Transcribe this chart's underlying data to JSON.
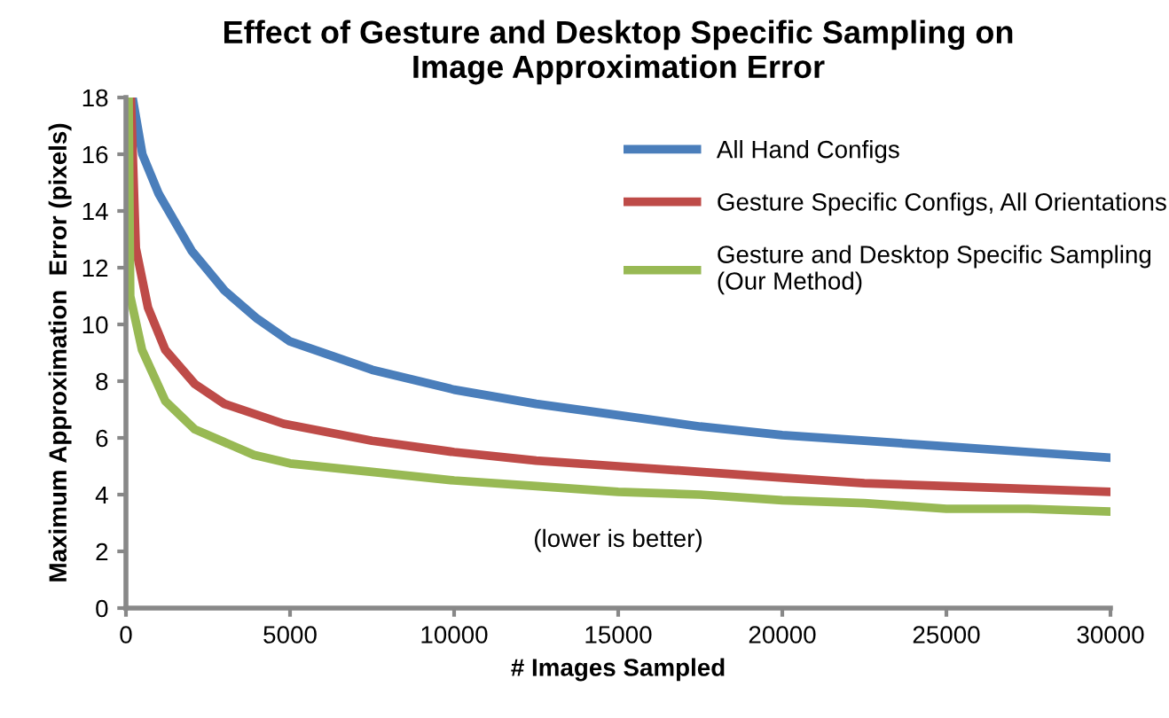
{
  "chart_data": {
    "type": "line",
    "title": "Effect of Gesture and Desktop Specific Sampling on\nImage Approximation Error",
    "xlabel": "# Images Sampled",
    "ylabel": "Maximum Approximation  Error (pixels)",
    "annotations": [
      "(lower is better)"
    ],
    "xlim": [
      0,
      30000
    ],
    "ylim": [
      0,
      18
    ],
    "xticks": [
      0,
      5000,
      10000,
      15000,
      20000,
      25000,
      30000
    ],
    "yticks": [
      0,
      2,
      4,
      6,
      8,
      10,
      12,
      14,
      16,
      18
    ],
    "grid": false,
    "legend": "top right",
    "marker": "none",
    "line_style": "solid",
    "series": [
      {
        "name": "All Hand Configs",
        "color": "#4a7ebb",
        "x": [
          200,
          500,
          1000,
          2000,
          3000,
          4000,
          5000,
          7500,
          10000,
          12500,
          15000,
          17500,
          20000,
          22500,
          25000,
          27500,
          30000
        ],
        "values": [
          18,
          16,
          14.6,
          12.6,
          11.2,
          10.2,
          9.4,
          8.4,
          7.7,
          7.2,
          6.8,
          6.4,
          6.1,
          5.9,
          5.7,
          5.5,
          5.3
        ]
      },
      {
        "name": "Gesture Specific Configs, All Orientations",
        "color": "#be4b48",
        "x": [
          150,
          300,
          670,
          1200,
          2100,
          3000,
          4800,
          7500,
          10000,
          12500,
          15000,
          17500,
          20000,
          22500,
          25000,
          27500,
          30000
        ],
        "values": [
          18,
          12.7,
          10.6,
          9.1,
          7.9,
          7.2,
          6.5,
          5.9,
          5.5,
          5.2,
          5.0,
          4.8,
          4.6,
          4.4,
          4.3,
          4.2,
          4.1
        ]
      },
      {
        "name": "Gesture and Desktop Specific Sampling\n(Our Method)",
        "color": "#98b954",
        "x": [
          80,
          130,
          490,
          1200,
          2100,
          3900,
          5000,
          7500,
          10000,
          12500,
          15000,
          17500,
          20000,
          22500,
          25000,
          27500,
          30000
        ],
        "values": [
          18,
          11,
          9.1,
          7.3,
          6.3,
          5.4,
          5.1,
          4.8,
          4.5,
          4.3,
          4.1,
          4.0,
          3.8,
          3.7,
          3.5,
          3.5,
          3.4
        ]
      }
    ]
  }
}
